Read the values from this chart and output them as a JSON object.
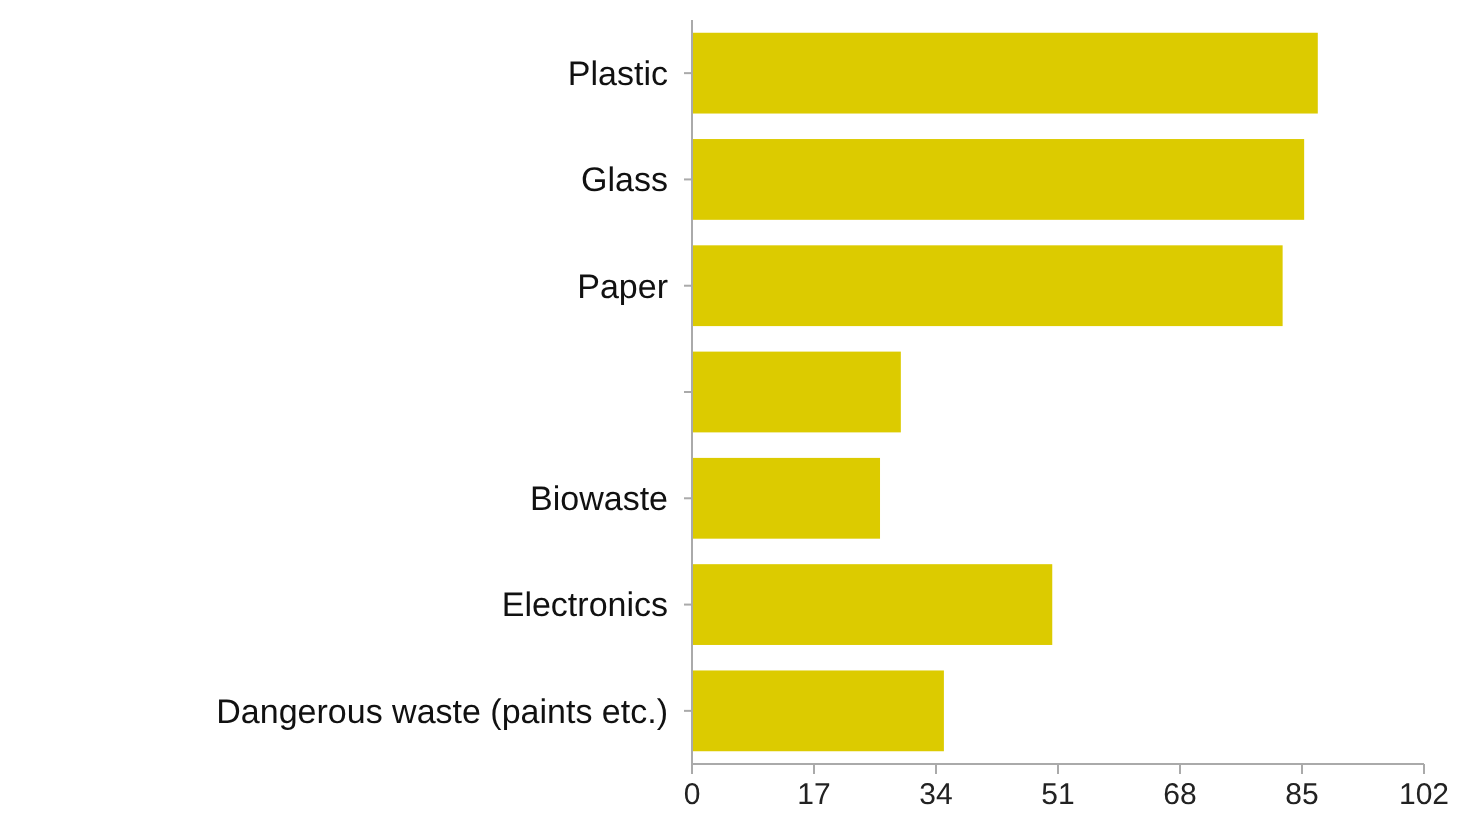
{
  "chart_data": {
    "type": "bar",
    "orientation": "horizontal",
    "categories": [
      "Plastic",
      "Glass",
      "Paper",
      null,
      "Biowaste",
      "Electronics",
      "Dangerous waste (paints etc.)"
    ],
    "values": [
      87.2,
      85.3,
      82.3,
      29.1,
      26.2,
      50.2,
      35.1
    ],
    "color": "#dccb00",
    "xlim": [
      0,
      102
    ],
    "xticks": [
      0,
      17,
      34,
      51,
      68,
      85,
      102
    ],
    "grid": false
  }
}
